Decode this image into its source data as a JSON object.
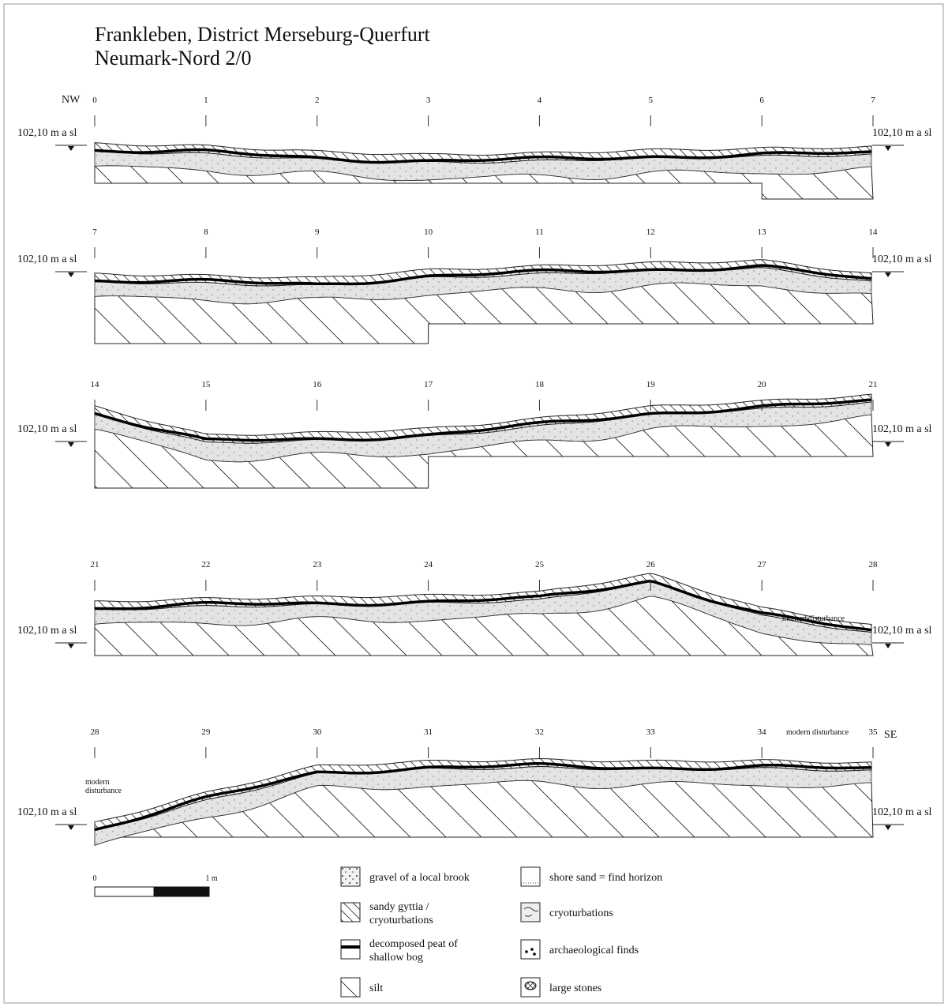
{
  "title": [
    "Frankleben, District Merseburg-Querfurt",
    "Neumark-Nord 2/0"
  ],
  "orientation": {
    "start": "NW",
    "end": "SE"
  },
  "profiles": [
    {
      "stations": [
        "0",
        "1",
        "2",
        "3",
        "4",
        "5",
        "6",
        "7"
      ],
      "elevation_left": "102,10 m a sl",
      "elevation_right": "102,10 m a sl",
      "annotations": []
    },
    {
      "stations": [
        "7",
        "8",
        "9",
        "10",
        "11",
        "12",
        "13",
        "14"
      ],
      "elevation_left": "102,10 m a sl",
      "elevation_right": "102,10 m a sl",
      "annotations": []
    },
    {
      "stations": [
        "14",
        "15",
        "16",
        "17",
        "18",
        "19",
        "20",
        "21"
      ],
      "elevation_left": "102,10 m a sl",
      "elevation_right": "102,10 m a sl",
      "annotations": []
    },
    {
      "stations": [
        "21",
        "22",
        "23",
        "24",
        "25",
        "26",
        "27",
        "28"
      ],
      "elevation_left": "102,10 m a sl",
      "elevation_right": "102,10 m a sl",
      "annotations": [
        {
          "lines": [
            "modern disturbance"
          ]
        }
      ]
    },
    {
      "stations": [
        "28",
        "29",
        "30",
        "31",
        "32",
        "33",
        "34",
        "35"
      ],
      "elevation_left": "102,10 m a sl",
      "elevation_right": "102,10 m a sl",
      "annotations": [
        {
          "lines": [
            "modern",
            "disturbance"
          ]
        },
        {
          "lines": [
            "modern disturbance"
          ]
        }
      ]
    }
  ],
  "scale": {
    "start": "0",
    "end": "1 m"
  },
  "legend": [
    {
      "lines": [
        "gravel of a local brook"
      ]
    },
    {
      "lines": [
        "sandy gyttia /",
        "cryoturbations"
      ]
    },
    {
      "lines": [
        "decomposed peat of",
        "shallow bog"
      ]
    },
    {
      "lines": [
        "silt"
      ]
    },
    {
      "lines": [
        "shore sand = find horizon"
      ]
    },
    {
      "lines": [
        "cryoturbations"
      ]
    },
    {
      "lines": [
        "archaeological finds"
      ]
    },
    {
      "lines": [
        "large stones"
      ]
    }
  ]
}
